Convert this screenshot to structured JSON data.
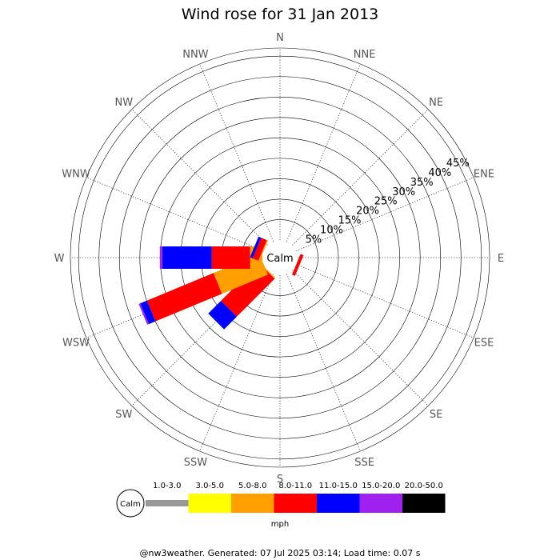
{
  "chart_data": {
    "type": "windrose",
    "title": "Wind rose for 31 Jan 2013",
    "directions": [
      "N",
      "NNE",
      "NE",
      "ENE",
      "E",
      "ESE",
      "SE",
      "SSE",
      "S",
      "SSW",
      "SW",
      "WSW",
      "W",
      "WNW",
      "NW",
      "NNW"
    ],
    "radial_ticks": [
      "5%",
      "10%",
      "15%",
      "20%",
      "25%",
      "30%",
      "35%",
      "40%",
      "45%"
    ],
    "radial_max": 47,
    "calm_label": "Calm",
    "speed_bins": [
      {
        "label": "1.0-3.0",
        "color": "#999999"
      },
      {
        "label": "3.0-5.0",
        "color": "#ffff00"
      },
      {
        "label": "5.0-8.0",
        "color": "#ffa000"
      },
      {
        "label": "8.0-11.0",
        "color": "#ff0000"
      },
      {
        "label": "11.0-15.0",
        "color": "#0000ff"
      },
      {
        "label": "15.0-20.0",
        "color": "#a020f0"
      },
      {
        "label": "20.0-50.0",
        "color": "#000000"
      }
    ],
    "unit": "mph",
    "data": [
      {
        "dir": "N",
        "pcts": [
          0,
          0,
          0,
          0,
          0,
          0,
          0
        ]
      },
      {
        "dir": "NNE",
        "pcts": [
          0,
          0,
          0,
          0,
          0,
          0,
          0
        ]
      },
      {
        "dir": "NE",
        "pcts": [
          0,
          0,
          0,
          0,
          0,
          0,
          0
        ]
      },
      {
        "dir": "ENE",
        "pcts": [
          0,
          0,
          0,
          0,
          0,
          0,
          0
        ]
      },
      {
        "dir": "E",
        "pcts": [
          0,
          0,
          0,
          0,
          0,
          0,
          0
        ]
      },
      {
        "dir": "ESE",
        "pcts": [
          0,
          0,
          0,
          0.8,
          0,
          0,
          0
        ]
      },
      {
        "dir": "SE",
        "pcts": [
          0,
          0,
          0,
          0,
          0,
          0,
          0
        ]
      },
      {
        "dir": "SSE",
        "pcts": [
          0,
          0,
          0,
          0,
          0,
          0,
          0
        ]
      },
      {
        "dir": "S",
        "pcts": [
          0,
          0,
          0,
          0,
          0,
          0,
          0
        ]
      },
      {
        "dir": "SSW",
        "pcts": [
          0,
          0,
          0,
          0,
          0,
          0,
          0
        ]
      },
      {
        "dir": "SW",
        "pcts": [
          0,
          0,
          0.3,
          13.1,
          4.4,
          0,
          0
        ]
      },
      {
        "dir": "WSW",
        "pcts": [
          0,
          0,
          12.2,
          17.6,
          1.8,
          0.4,
          0
        ]
      },
      {
        "dir": "W",
        "pcts": [
          0,
          0,
          3.0,
          9.4,
          12.1,
          0.6,
          0
        ]
      },
      {
        "dir": "WNW",
        "pcts": [
          0,
          0,
          0.3,
          1.5,
          0.7,
          0,
          0
        ]
      },
      {
        "dir": "NW",
        "pcts": [
          0,
          0,
          0,
          0,
          0,
          0,
          0
        ]
      },
      {
        "dir": "NNW",
        "pcts": [
          0,
          0,
          0,
          0,
          0,
          0,
          0
        ]
      }
    ]
  },
  "footer": "@nw3weather. Generated: 07 Jul 2025 03:14; Load time: 0.07 s"
}
